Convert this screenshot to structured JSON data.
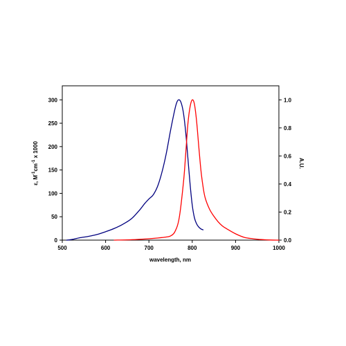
{
  "chart_data": {
    "type": "line",
    "title": "",
    "xlabel": "wavelength, nm",
    "ylabel_left": "ε, M⁻¹cm⁻¹ x 1000",
    "ylabel_left_parts": {
      "base": "ε, M",
      "exp1": "-1",
      "mid": "cm",
      "exp2": "-1",
      "tail": " x 1000"
    },
    "ylabel_right": "A.U.",
    "xlim": [
      500,
      1000
    ],
    "ylim_left": [
      0,
      330
    ],
    "ylim_right": [
      0,
      1.1
    ],
    "x_ticks": [
      "500",
      "600",
      "700",
      "800",
      "900",
      "1000"
    ],
    "y_left_ticks": [
      "0",
      "50",
      "100",
      "150",
      "200",
      "250",
      "300"
    ],
    "y_right_ticks": [
      "0.0",
      "0.2",
      "0.4",
      "0.6",
      "0.8",
      "1.0"
    ],
    "grid": false,
    "series": [
      {
        "axis": "left",
        "color": "#00007f",
        "x": [
          510,
          520,
          540,
          560,
          580,
          600,
          620,
          640,
          660,
          680,
          690,
          700,
          710,
          720,
          730,
          740,
          750,
          760,
          765,
          770,
          775,
          780,
          785,
          790,
          795,
          800,
          805,
          810,
          815,
          820,
          825
        ],
        "y": [
          0,
          1,
          5,
          8,
          12,
          18,
          25,
          34,
          46,
          66,
          78,
          88,
          97,
          115,
          145,
          185,
          235,
          280,
          296,
          300,
          292,
          270,
          230,
          175,
          120,
          75,
          48,
          35,
          28,
          24,
          22
        ]
      },
      {
        "axis": "right",
        "color": "#ff0000",
        "x": [
          620,
          660,
          700,
          720,
          740,
          750,
          760,
          770,
          780,
          785,
          790,
          795,
          800,
          805,
          810,
          815,
          820,
          825,
          830,
          840,
          850,
          860,
          870,
          880,
          900,
          920,
          940,
          960,
          980,
          1000
        ],
        "y": [
          0,
          0.003,
          0.01,
          0.015,
          0.022,
          0.03,
          0.06,
          0.16,
          0.42,
          0.62,
          0.83,
          0.95,
          1.0,
          0.97,
          0.85,
          0.67,
          0.5,
          0.38,
          0.3,
          0.22,
          0.17,
          0.13,
          0.1,
          0.08,
          0.045,
          0.02,
          0.01,
          0.004,
          0.001,
          0
        ]
      }
    ]
  }
}
